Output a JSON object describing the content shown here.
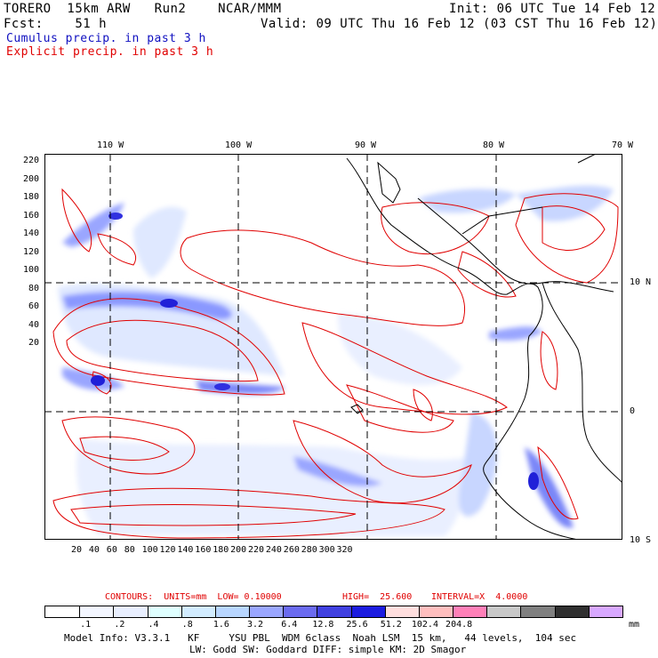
{
  "header": {
    "line1_left": "TORERO  15km ARW   Run2    NCAR/MMM",
    "line1_right": "Init: 06 UTC Tue 14 Feb 12",
    "line2_left": "Fcst:    51 h",
    "line2_right": "Valid: 09 UTC Thu 16 Feb 12 (03 CST Thu 16 Feb 12)",
    "legend_cumulus": "Cumulus precip. in past 3 h",
    "legend_explicit": "Explicit precip. in past 3 h"
  },
  "map": {
    "top_lon_labels": [
      "110 W",
      "100 W",
      "90 W",
      "80 W",
      "70 W"
    ],
    "right_lat_labels": [
      "10 N",
      "0",
      "10 S"
    ],
    "left_y_ticks": [
      "220",
      "200",
      "180",
      "160",
      "140",
      "120",
      "100",
      "80",
      "60",
      "40",
      "20"
    ],
    "bottom_x_ticks": [
      "20",
      "40",
      "60",
      "80",
      "100",
      "120",
      "140",
      "160",
      "180",
      "200",
      "220",
      "240",
      "260",
      "280",
      "300",
      "320"
    ]
  },
  "contour_info": {
    "contours": "CONTOURS:  UNITS=mm  LOW= 0.10000",
    "high": "HIGH=  25.600",
    "interval": "INTERVAL=X  4.0000"
  },
  "colorbar": {
    "colors": [
      "#ffffff",
      "#f3f6ff",
      "#e9efff",
      "#dfffff",
      "#d2ecff",
      "#b8d6ff",
      "#9aa6ff",
      "#6b6bf0",
      "#4040e0",
      "#1c1ce0",
      "#ffdede",
      "#ffbebe",
      "#ff80b8",
      "#c8c8c8",
      "#808080",
      "#303030",
      "#d8a8ff"
    ],
    "labels": [
      ".1",
      ".2",
      ".4",
      ".8",
      "1.6",
      "3.2",
      "6.4",
      "12.8",
      "25.6",
      "51.2",
      "102.4",
      "204.8"
    ],
    "units": "mm"
  },
  "footer": {
    "line1": "Model Info: V3.3.1   KF     YSU PBL  WDM 6class  Noah LSM  15 km,   44 levels,  104 sec",
    "line2": "LW: Godd SW: Goddard DIFF: simple KM: 2D Smagor"
  }
}
